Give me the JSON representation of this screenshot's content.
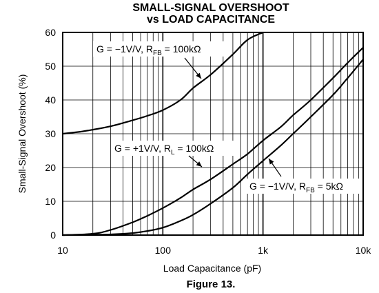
{
  "chart_data": {
    "type": "line",
    "title": [
      "SMALL-SIGNAL OVERSHOOT",
      "vs LOAD CAPACITANCE"
    ],
    "xlabel": "Load Capacitance (pF)",
    "ylabel": "Small-Signal Overshoot (%)",
    "caption": "Figure 13.",
    "x_scale": "log",
    "xlim": [
      10,
      10000
    ],
    "ylim": [
      0,
      60
    ],
    "x_ticks": [
      {
        "value": 10,
        "label": "10"
      },
      {
        "value": 100,
        "label": "100"
      },
      {
        "value": 1000,
        "label": "1k"
      },
      {
        "value": 10000,
        "label": "10k"
      }
    ],
    "y_ticks": [
      0,
      10,
      20,
      30,
      40,
      50,
      60
    ],
    "grid": true,
    "series": [
      {
        "annotation": {
          "pre": "G = −1V/V, R",
          "sub": "FB",
          "post": " = 100kΩ"
        },
        "x": [
          10,
          15,
          20,
          30,
          50,
          70,
          100,
          150,
          200,
          300,
          500,
          700,
          1000
        ],
        "y": [
          30,
          30.6,
          31.2,
          32.2,
          34.0,
          35.3,
          37.0,
          40.0,
          43.5,
          47.5,
          53.5,
          57.8,
          60
        ]
      },
      {
        "annotation": {
          "pre": "G = +1V/V, R",
          "sub": "L",
          "post": " = 100kΩ"
        },
        "x": [
          10,
          20,
          30,
          50,
          70,
          100,
          150,
          200,
          300,
          500,
          700,
          1000,
          1500,
          2000,
          3000,
          5000,
          7000,
          10000
        ],
        "y": [
          0,
          0.4,
          1.5,
          3.8,
          5.7,
          8.0,
          11.0,
          13.5,
          16.5,
          21.0,
          24.0,
          28.0,
          32.0,
          35.5,
          40.0,
          46.5,
          51.0,
          55.5
        ]
      },
      {
        "annotation": {
          "pre": "G = −1V/V, R",
          "sub": "FB",
          "post": " = 5kΩ"
        },
        "x": [
          10,
          30,
          50,
          70,
          100,
          150,
          200,
          300,
          500,
          700,
          1000,
          1500,
          2000,
          3000,
          5000,
          7000,
          10000
        ],
        "y": [
          0,
          0.2,
          0.6,
          1.2,
          2.2,
          4.2,
          6.0,
          9.3,
          14.0,
          18.0,
          22.0,
          26.5,
          30.0,
          35.0,
          41.5,
          46.5,
          52.0
        ]
      }
    ]
  }
}
